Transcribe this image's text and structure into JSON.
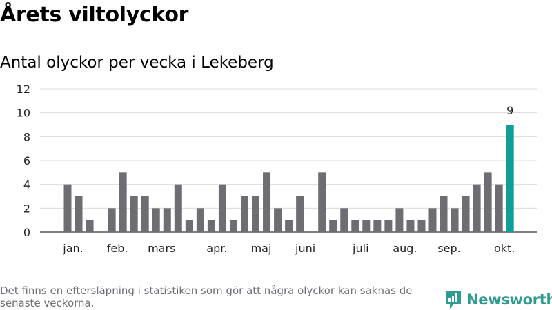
{
  "header": {
    "title": "Årets viltolyckor",
    "subtitle": "Antal olyckor per vecka i Lekeberg"
  },
  "footer": {
    "note": "Det finns en eftersläpning i statistiken som gör att några olyckor kan saknas de senaste veckorna.",
    "brand": "Newsworthy",
    "brand_icon": "newsworthy-logo-icon"
  },
  "colors": {
    "bar": "#6d6d72",
    "highlight": "#0f9e98",
    "grid": "#dcdcdc",
    "axis": "#333333",
    "brand": "#2f9b91"
  },
  "chart_data": {
    "type": "bar",
    "title": "Årets viltolyckor",
    "subtitle": "Antal olyckor per vecka i Lekeberg",
    "xlabel": "",
    "ylabel": "",
    "ylim": [
      0,
      12
    ],
    "yticks": [
      0,
      2,
      4,
      6,
      8,
      10,
      12
    ],
    "grid": true,
    "weeks": [
      1,
      2,
      3,
      4,
      5,
      6,
      7,
      8,
      9,
      10,
      11,
      12,
      13,
      14,
      15,
      16,
      17,
      18,
      19,
      20,
      21,
      22,
      23,
      24,
      25,
      26,
      27,
      28,
      29,
      30,
      31,
      32,
      33,
      34,
      35,
      36,
      37,
      38,
      39,
      40,
      41
    ],
    "values": [
      4,
      3,
      1,
      0,
      2,
      5,
      3,
      3,
      2,
      2,
      4,
      1,
      2,
      1,
      4,
      1,
      3,
      3,
      5,
      2,
      1,
      3,
      0,
      5,
      1,
      2,
      1,
      1,
      1,
      1,
      2,
      1,
      1,
      2,
      3,
      2,
      3,
      4,
      5,
      4,
      9
    ],
    "highlight_index": 40,
    "data_labels": [
      {
        "index": 40,
        "text": "9"
      }
    ],
    "month_labels": [
      {
        "label": "jan.",
        "week": 1.5
      },
      {
        "label": "feb.",
        "week": 5.5
      },
      {
        "label": "mars",
        "week": 9.5
      },
      {
        "label": "apr.",
        "week": 14.5
      },
      {
        "label": "maj",
        "week": 18.5
      },
      {
        "label": "juni",
        "week": 22.5
      },
      {
        "label": "juli",
        "week": 27.5
      },
      {
        "label": "aug.",
        "week": 31.5
      },
      {
        "label": "sep.",
        "week": 35.5
      },
      {
        "label": "okt.",
        "week": 40.5
      }
    ]
  }
}
